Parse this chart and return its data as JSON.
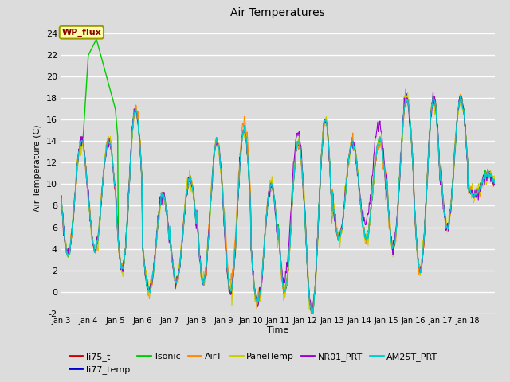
{
  "title": "Air Temperatures",
  "xlabel": "Time",
  "ylabel": "Air Temperature (C)",
  "ylim": [
    -2,
    25
  ],
  "yticks": [
    -2,
    0,
    2,
    4,
    6,
    8,
    10,
    12,
    14,
    16,
    18,
    20,
    22,
    24
  ],
  "bg_color": "#dcdcdc",
  "grid_color": "white",
  "series": [
    {
      "name": "li75_t",
      "color": "#cc0000",
      "lw": 0.8
    },
    {
      "name": "li77_temp",
      "color": "#0000cc",
      "lw": 0.8
    },
    {
      "name": "Tsonic",
      "color": "#00cc00",
      "lw": 1.0
    },
    {
      "name": "AirT",
      "color": "#ff8800",
      "lw": 0.8
    },
    {
      "name": "PanelTemp",
      "color": "#cccc00",
      "lw": 0.8
    },
    {
      "name": "NR01_PRT",
      "color": "#9900cc",
      "lw": 0.8
    },
    {
      "name": "AM25T_PRT",
      "color": "#00cccc",
      "lw": 1.0
    }
  ],
  "xtick_labels": [
    "Jan 3",
    "Jan 4",
    "Jan 5",
    "Jan 6",
    "Jan 7",
    "Jan 8",
    "Jan 9",
    "Jan 10",
    "Jan 11",
    "Jan 12",
    "Jan 13",
    "Jan 14",
    "Jan 15",
    "Jan 16",
    "Jan 17",
    "Jan 18"
  ],
  "annotation_text": "WP_flux",
  "annotation_box_color": "#ffffaa",
  "annotation_text_color": "#880000",
  "annotation_border_color": "#999900",
  "n_days": 16,
  "pts_per_day": 48,
  "day_minima": [
    3.5,
    4.0,
    2.0,
    0.0,
    1.0,
    1.0,
    0.0,
    -1.0,
    0.0,
    -2.0,
    5.0,
    5.0,
    4.0,
    2.0,
    6.0,
    9.0
  ],
  "day_maxima": [
    14.0,
    14.0,
    17.0,
    9.0,
    10.5,
    14.0,
    15.0,
    10.0,
    14.0,
    16.0,
    14.0,
    14.0,
    18.0,
    18.0,
    18.0,
    11.0
  ],
  "tsonic_spike_days": [
    1,
    2
  ],
  "tsonic_spike_vals": [
    22.0,
    23.5
  ]
}
